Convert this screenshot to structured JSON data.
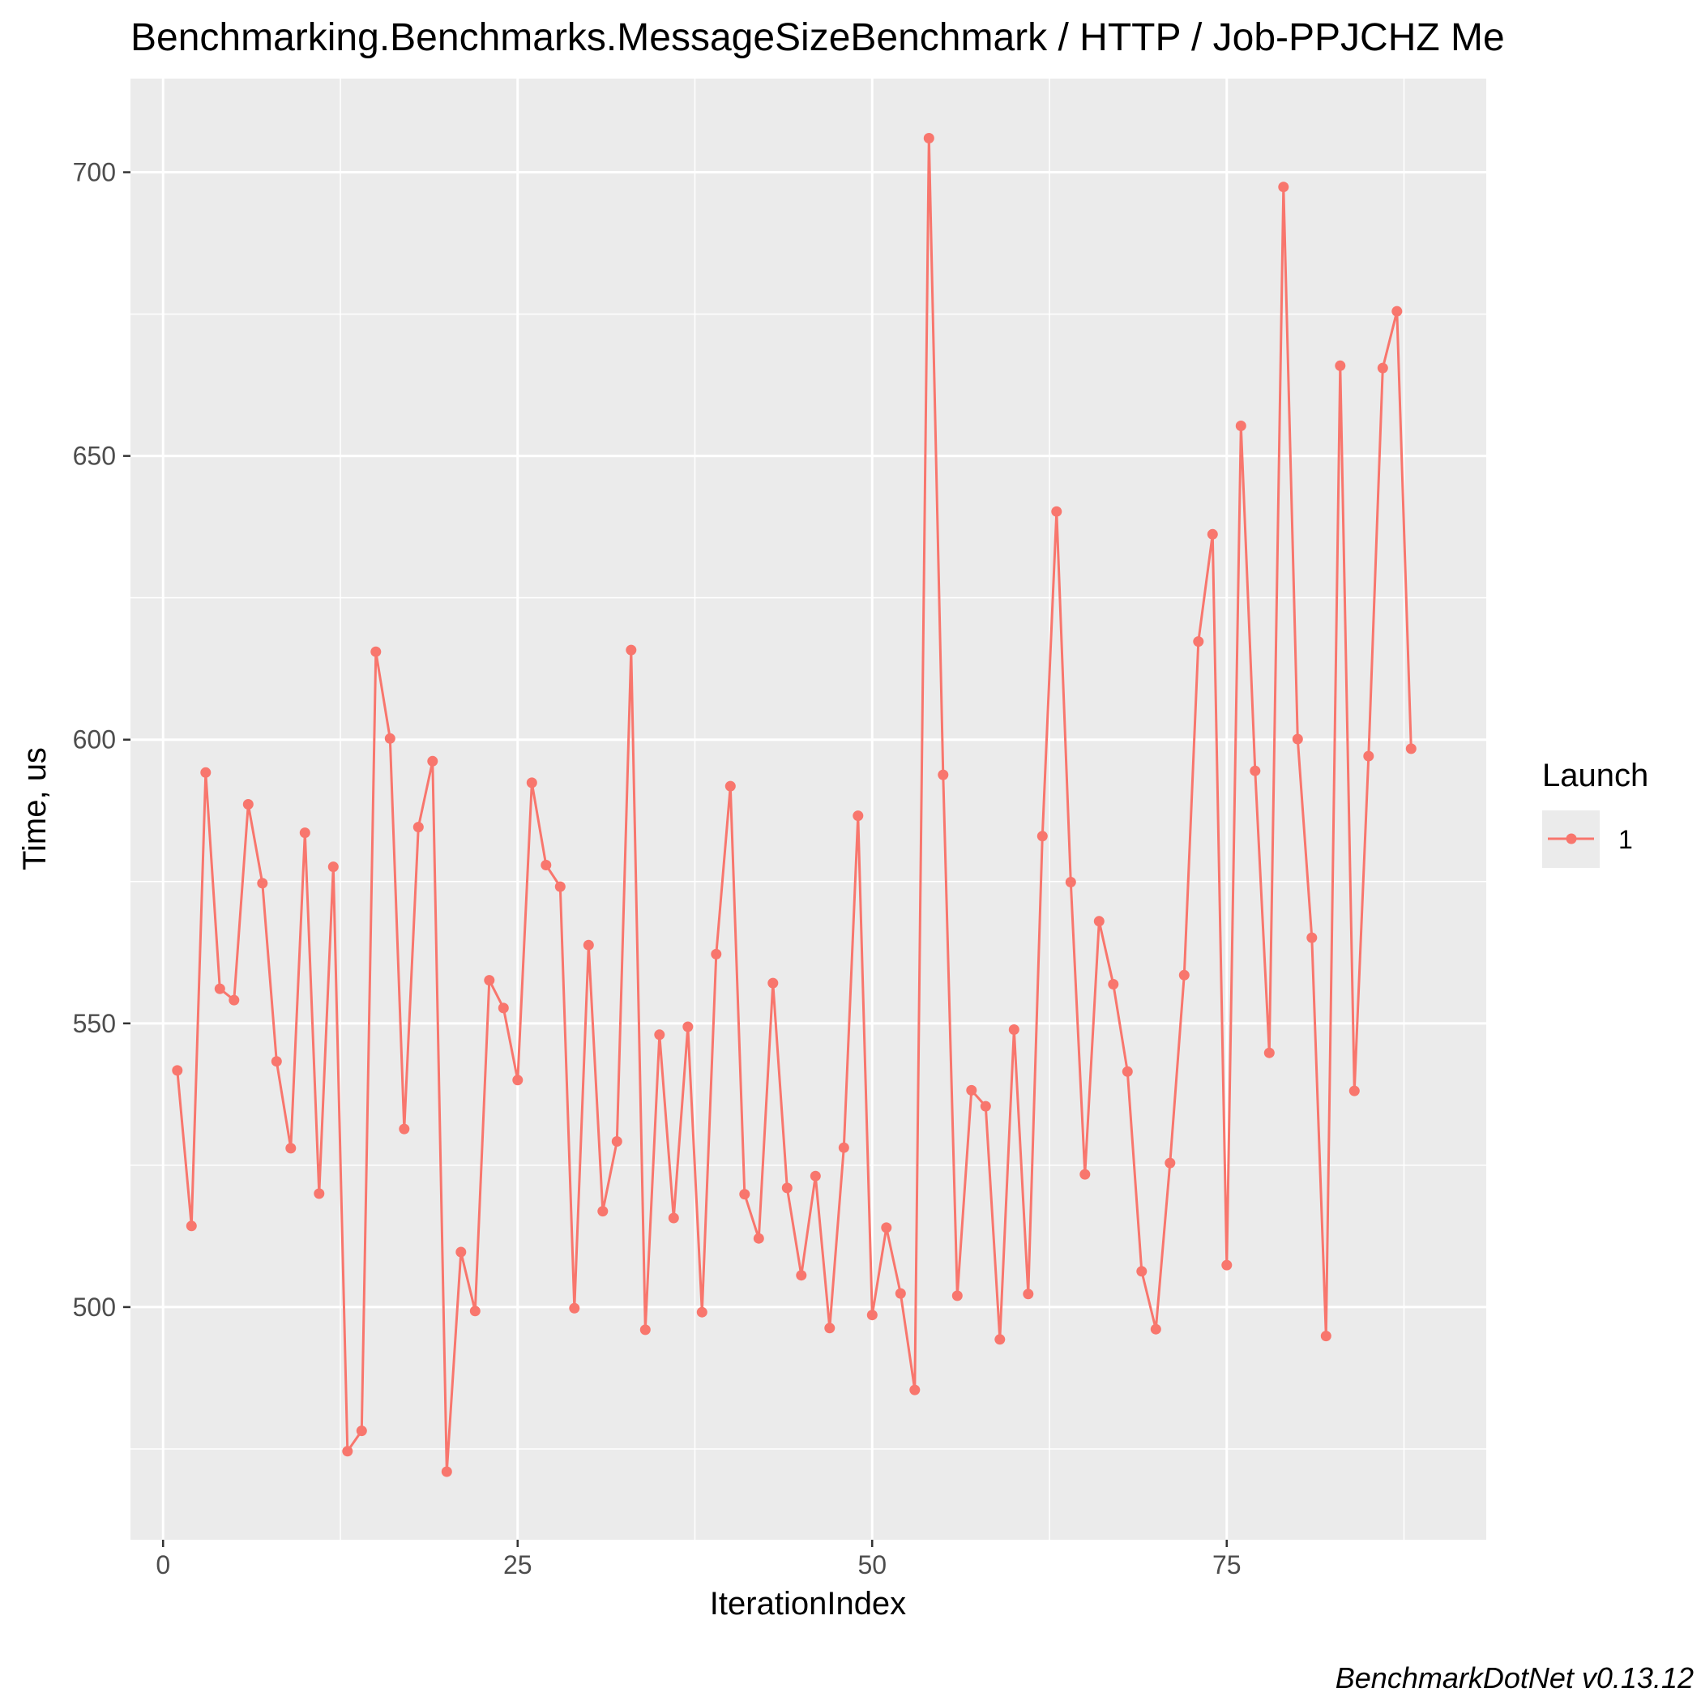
{
  "chart_data": {
    "type": "line",
    "title": "Benchmarking.Benchmarks.MessageSizeBenchmark / HTTP / Job-PPJCHZ Me",
    "xlabel": "IterationIndex",
    "ylabel": "Time, us",
    "xlim": [
      -2.3,
      93.3
    ],
    "ylim": [
      459.0,
      716.5
    ],
    "x_ticks": [
      0,
      25,
      50,
      75
    ],
    "y_ticks": [
      500,
      550,
      600,
      650,
      700
    ],
    "grid": true,
    "legend": {
      "title": "Launch",
      "position": "right"
    },
    "series": [
      {
        "name": "1",
        "color": "#F8766D",
        "x": [
          1,
          2,
          3,
          4,
          5,
          6,
          7,
          8,
          9,
          10,
          11,
          12,
          13,
          14,
          15,
          16,
          17,
          18,
          19,
          20,
          21,
          22,
          23,
          24,
          25,
          26,
          27,
          28,
          29,
          30,
          31,
          32,
          33,
          34,
          35,
          36,
          37,
          38,
          39,
          40,
          41,
          42,
          43,
          44,
          45,
          46,
          47,
          48,
          49,
          50,
          51,
          52,
          53,
          54,
          55,
          56,
          57,
          58,
          59,
          60,
          61,
          62,
          63,
          64,
          65,
          66,
          67,
          68,
          69,
          70,
          71,
          72,
          73,
          74,
          75,
          76,
          77,
          78,
          79,
          80,
          81,
          82,
          83,
          84,
          85,
          86,
          87,
          88
        ],
        "values": [
          541.7,
          514.3,
          594.2,
          556.1,
          554.1,
          588.6,
          574.7,
          543.3,
          528.0,
          583.6,
          520.0,
          577.6,
          474.6,
          478.2,
          615.5,
          600.2,
          531.4,
          584.6,
          596.2,
          471.0,
          509.7,
          499.3,
          557.6,
          552.7,
          540.0,
          592.4,
          577.9,
          574.1,
          499.8,
          563.8,
          516.9,
          529.2,
          615.8,
          496.0,
          548.0,
          515.7,
          549.4,
          499.1,
          562.2,
          591.8,
          519.9,
          512.1,
          557.1,
          521.0,
          505.6,
          523.1,
          496.3,
          528.1,
          586.6,
          498.6,
          514.0,
          502.4,
          485.4,
          706.0,
          593.8,
          502.0,
          538.2,
          535.4,
          494.3,
          548.9,
          502.3,
          583.0,
          640.2,
          574.9,
          523.4,
          568.0,
          556.9,
          541.5,
          506.3,
          496.1,
          525.4,
          558.5,
          617.3,
          636.2,
          507.4,
          655.3,
          594.5,
          544.8,
          697.4,
          600.1,
          565.1,
          494.9,
          665.9,
          538.1,
          597.1,
          665.5,
          675.5,
          598.4
        ]
      }
    ]
  },
  "caption": "BenchmarkDotNet v0.13.12"
}
